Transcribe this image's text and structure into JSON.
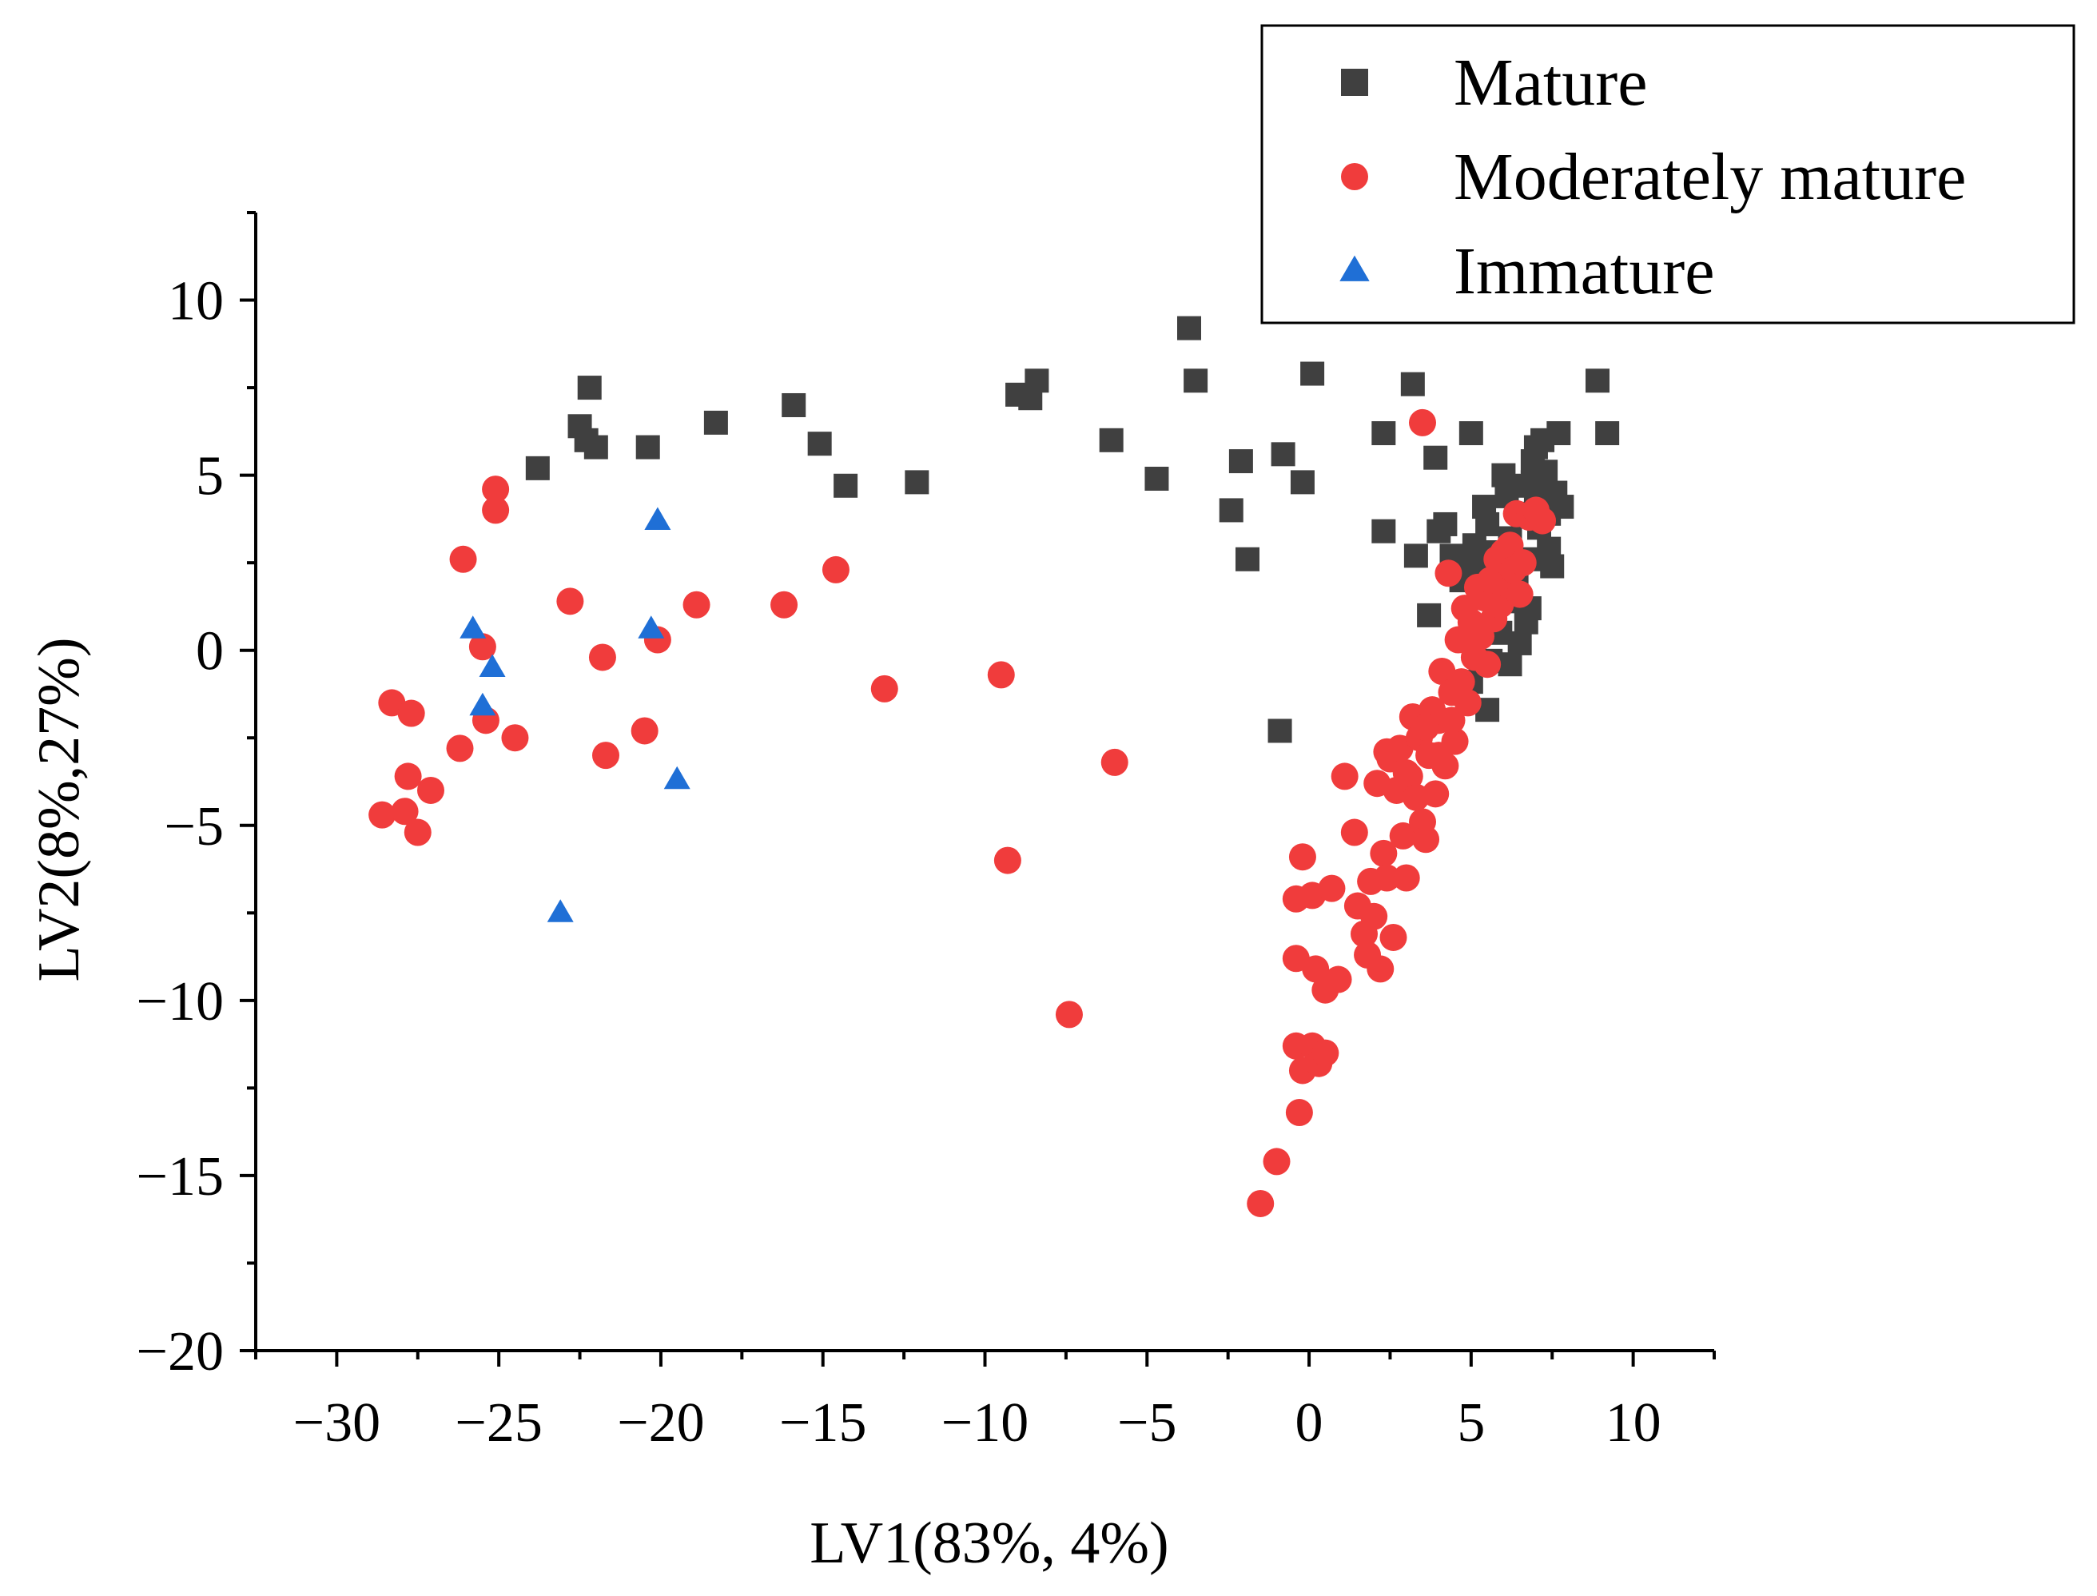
{
  "chart_data": {
    "type": "scatter",
    "xlabel": "LV1(83%, 4%)",
    "ylabel": "LV2(8%,27%)",
    "xlim": [
      -32.5,
      12.5
    ],
    "ylim": [
      -20,
      12.5
    ],
    "xticks": [
      -30,
      -25,
      -20,
      -15,
      -10,
      -5,
      0,
      5,
      10
    ],
    "xtick_labels": [
      "−30",
      "−25",
      "−20",
      "−15",
      "−10",
      "−5",
      "0",
      "5",
      "10"
    ],
    "yticks": [
      -20,
      -15,
      -10,
      -5,
      0,
      5,
      10
    ],
    "ytick_labels": [
      "−20",
      "−15",
      "−10",
      "−5",
      "0",
      "5",
      "10"
    ],
    "grid": false,
    "legend_position": "top-right",
    "series": [
      {
        "name": "Mature",
        "marker": "square",
        "color": "#404040",
        "points": [
          [
            -23.8,
            5.2
          ],
          [
            -22.5,
            6.4
          ],
          [
            -22.2,
            7.5
          ],
          [
            -22.3,
            6.0
          ],
          [
            -22.0,
            5.8
          ],
          [
            -20.4,
            5.8
          ],
          [
            -18.3,
            6.5
          ],
          [
            -15.9,
            7.0
          ],
          [
            -15.1,
            5.9
          ],
          [
            -14.3,
            4.7
          ],
          [
            -12.1,
            4.8
          ],
          [
            -9.0,
            7.3
          ],
          [
            -8.6,
            7.2
          ],
          [
            -8.4,
            7.7
          ],
          [
            -6.1,
            6.0
          ],
          [
            -4.7,
            4.9
          ],
          [
            -3.7,
            9.2
          ],
          [
            -3.5,
            7.7
          ],
          [
            -2.4,
            4.0
          ],
          [
            -2.1,
            5.4
          ],
          [
            -1.9,
            2.6
          ],
          [
            -0.8,
            5.6
          ],
          [
            -0.2,
            4.8
          ],
          [
            0.1,
            7.9
          ],
          [
            -0.9,
            -2.3
          ],
          [
            2.3,
            6.2
          ],
          [
            2.3,
            3.4
          ],
          [
            3.2,
            7.6
          ],
          [
            3.3,
            2.7
          ],
          [
            3.7,
            1.0
          ],
          [
            3.9,
            5.5
          ],
          [
            4.0,
            3.4
          ],
          [
            4.2,
            3.6
          ],
          [
            4.4,
            2.7
          ],
          [
            4.6,
            2.5
          ],
          [
            4.7,
            2.0
          ],
          [
            5.0,
            6.2
          ],
          [
            5.1,
            3.0
          ],
          [
            5.2,
            2.4
          ],
          [
            5.4,
            4.1
          ],
          [
            5.5,
            3.6
          ],
          [
            5.6,
            1.7
          ],
          [
            5.8,
            2.8
          ],
          [
            5.9,
            0.5
          ],
          [
            6.0,
            5.0
          ],
          [
            6.1,
            4.4
          ],
          [
            6.2,
            3.2
          ],
          [
            6.3,
            1.4
          ],
          [
            6.4,
            2.1
          ],
          [
            6.5,
            4.7
          ],
          [
            6.6,
            3.9
          ],
          [
            6.7,
            0.8
          ],
          [
            6.8,
            2.6
          ],
          [
            6.9,
            5.4
          ],
          [
            7.0,
            4.2
          ],
          [
            7.1,
            3.5
          ],
          [
            7.2,
            6.0
          ],
          [
            7.3,
            5.1
          ],
          [
            7.4,
            2.9
          ],
          [
            7.5,
            2.4
          ],
          [
            7.6,
            4.5
          ],
          [
            7.7,
            6.2
          ],
          [
            7.8,
            4.1
          ],
          [
            6.8,
            1.2
          ],
          [
            6.5,
            0.2
          ],
          [
            5.3,
            -0.4
          ],
          [
            5.6,
            -0.3
          ],
          [
            6.2,
            -0.4
          ],
          [
            5.5,
            -1.7
          ],
          [
            5.0,
            -0.9
          ],
          [
            8.9,
            7.7
          ],
          [
            9.2,
            6.2
          ],
          [
            7.0,
            5.8
          ],
          [
            6.9,
            4.8
          ],
          [
            7.4,
            3.9
          ]
        ]
      },
      {
        "name": "Moderately mature",
        "marker": "circle",
        "color": "#f03c3c",
        "points": [
          [
            -28.6,
            -4.7
          ],
          [
            -28.3,
            -1.5
          ],
          [
            -27.8,
            -3.6
          ],
          [
            -27.9,
            -4.6
          ],
          [
            -27.7,
            -1.8
          ],
          [
            -27.5,
            -5.2
          ],
          [
            -27.1,
            -4.0
          ],
          [
            -26.2,
            -2.8
          ],
          [
            -26.1,
            2.6
          ],
          [
            -25.5,
            0.1
          ],
          [
            -25.4,
            -2.0
          ],
          [
            -25.1,
            4.6
          ],
          [
            -25.1,
            4.0
          ],
          [
            -24.5,
            -2.5
          ],
          [
            -22.8,
            1.4
          ],
          [
            -21.8,
            -0.2
          ],
          [
            -21.7,
            -3.0
          ],
          [
            -20.5,
            -2.3
          ],
          [
            -20.1,
            0.3
          ],
          [
            -18.9,
            1.3
          ],
          [
            -16.2,
            1.3
          ],
          [
            -14.6,
            2.3
          ],
          [
            -13.1,
            -1.1
          ],
          [
            -9.5,
            -0.7
          ],
          [
            -9.3,
            -6.0
          ],
          [
            -7.4,
            -10.4
          ],
          [
            -6.0,
            -3.2
          ],
          [
            -1.5,
            -15.8
          ],
          [
            -1.0,
            -14.6
          ],
          [
            -0.4,
            -11.3
          ],
          [
            -0.3,
            -13.2
          ],
          [
            -0.2,
            -12.0
          ],
          [
            0.1,
            -11.3
          ],
          [
            0.3,
            -11.8
          ],
          [
            0.5,
            -11.5
          ],
          [
            -0.4,
            -8.8
          ],
          [
            0.2,
            -9.1
          ],
          [
            0.5,
            -9.7
          ],
          [
            0.9,
            -9.4
          ],
          [
            -0.4,
            -7.1
          ],
          [
            0.1,
            -7.0
          ],
          [
            0.7,
            -6.8
          ],
          [
            -0.2,
            -5.9
          ],
          [
            1.1,
            -3.6
          ],
          [
            1.4,
            -5.2
          ],
          [
            1.5,
            -7.3
          ],
          [
            1.7,
            -8.1
          ],
          [
            1.8,
            -8.7
          ],
          [
            1.9,
            -6.6
          ],
          [
            2.0,
            -7.6
          ],
          [
            2.1,
            -3.8
          ],
          [
            2.2,
            -9.1
          ],
          [
            2.3,
            -5.8
          ],
          [
            2.4,
            -6.5
          ],
          [
            2.5,
            -3.1
          ],
          [
            2.6,
            -8.2
          ],
          [
            2.7,
            -4.0
          ],
          [
            2.8,
            -2.8
          ],
          [
            2.9,
            -5.3
          ],
          [
            3.0,
            -6.5
          ],
          [
            3.1,
            -3.6
          ],
          [
            3.2,
            -1.9
          ],
          [
            3.3,
            -4.2
          ],
          [
            3.4,
            -2.5
          ],
          [
            3.5,
            -4.9
          ],
          [
            3.6,
            -5.4
          ],
          [
            3.7,
            -3.0
          ],
          [
            3.8,
            -1.7
          ],
          [
            3.9,
            -4.1
          ],
          [
            4.0,
            -2.0
          ],
          [
            4.1,
            -0.6
          ],
          [
            4.2,
            -3.3
          ],
          [
            4.3,
            2.2
          ],
          [
            4.4,
            -1.2
          ],
          [
            4.5,
            -2.6
          ],
          [
            4.6,
            0.3
          ],
          [
            4.7,
            -0.9
          ],
          [
            4.8,
            1.2
          ],
          [
            4.9,
            -1.5
          ],
          [
            5.0,
            0.8
          ],
          [
            5.1,
            -0.2
          ],
          [
            5.2,
            1.8
          ],
          [
            5.3,
            0.4
          ],
          [
            5.4,
            1.5
          ],
          [
            5.5,
            -0.4
          ],
          [
            5.6,
            2.0
          ],
          [
            5.7,
            0.9
          ],
          [
            5.8,
            2.6
          ],
          [
            5.9,
            1.3
          ],
          [
            6.0,
            2.8
          ],
          [
            6.1,
            1.9
          ],
          [
            6.2,
            3.0
          ],
          [
            6.3,
            2.3
          ],
          [
            6.4,
            3.9
          ],
          [
            6.5,
            1.6
          ],
          [
            6.6,
            2.5
          ],
          [
            6.8,
            3.8
          ],
          [
            7.0,
            4.0
          ],
          [
            7.2,
            3.7
          ],
          [
            3.5,
            6.5
          ],
          [
            4.0,
            -3.0
          ],
          [
            3.0,
            -3.5
          ],
          [
            2.4,
            -2.9
          ],
          [
            4.4,
            -2.0
          ],
          [
            3.6,
            -2.2
          ]
        ]
      },
      {
        "name": "Immature",
        "marker": "triangle",
        "color": "#1f6fd6",
        "points": [
          [
            -25.8,
            0.6
          ],
          [
            -25.2,
            -0.5
          ],
          [
            -25.5,
            -1.6
          ],
          [
            -23.1,
            -7.5
          ],
          [
            -20.1,
            3.7
          ],
          [
            -20.3,
            0.6
          ],
          [
            -19.5,
            -3.7
          ]
        ]
      }
    ]
  }
}
